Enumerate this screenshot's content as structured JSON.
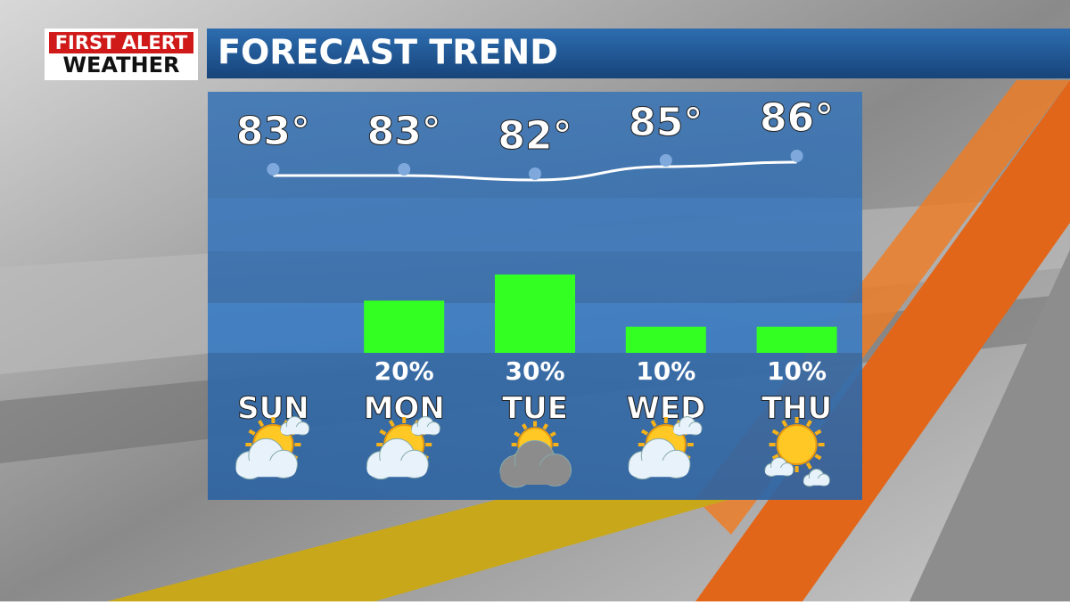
{
  "chart_data": {
    "type": "forecast",
    "title": "FORECAST TREND",
    "brand": [
      "FIRST ALERT",
      "WEATHER"
    ],
    "categories": [
      "SUN",
      "MON",
      "TUE",
      "WED",
      "THU"
    ],
    "temperatures": [
      83,
      83,
      82,
      85,
      86
    ],
    "temperature_labels": [
      "83°",
      "83°",
      "82°",
      "85°",
      "86°"
    ],
    "temp_ylim": [
      70,
      100
    ],
    "temp_color": "#ffffff",
    "dot_color": "#7fa9dc",
    "precipitation": [
      null,
      20,
      30,
      10,
      10
    ],
    "precipitation_labels": [
      null,
      "20%",
      "30%",
      "10%",
      "10%"
    ],
    "precip_ylim": [
      0,
      100
    ],
    "bar_color": "#33ff22"
  }
}
